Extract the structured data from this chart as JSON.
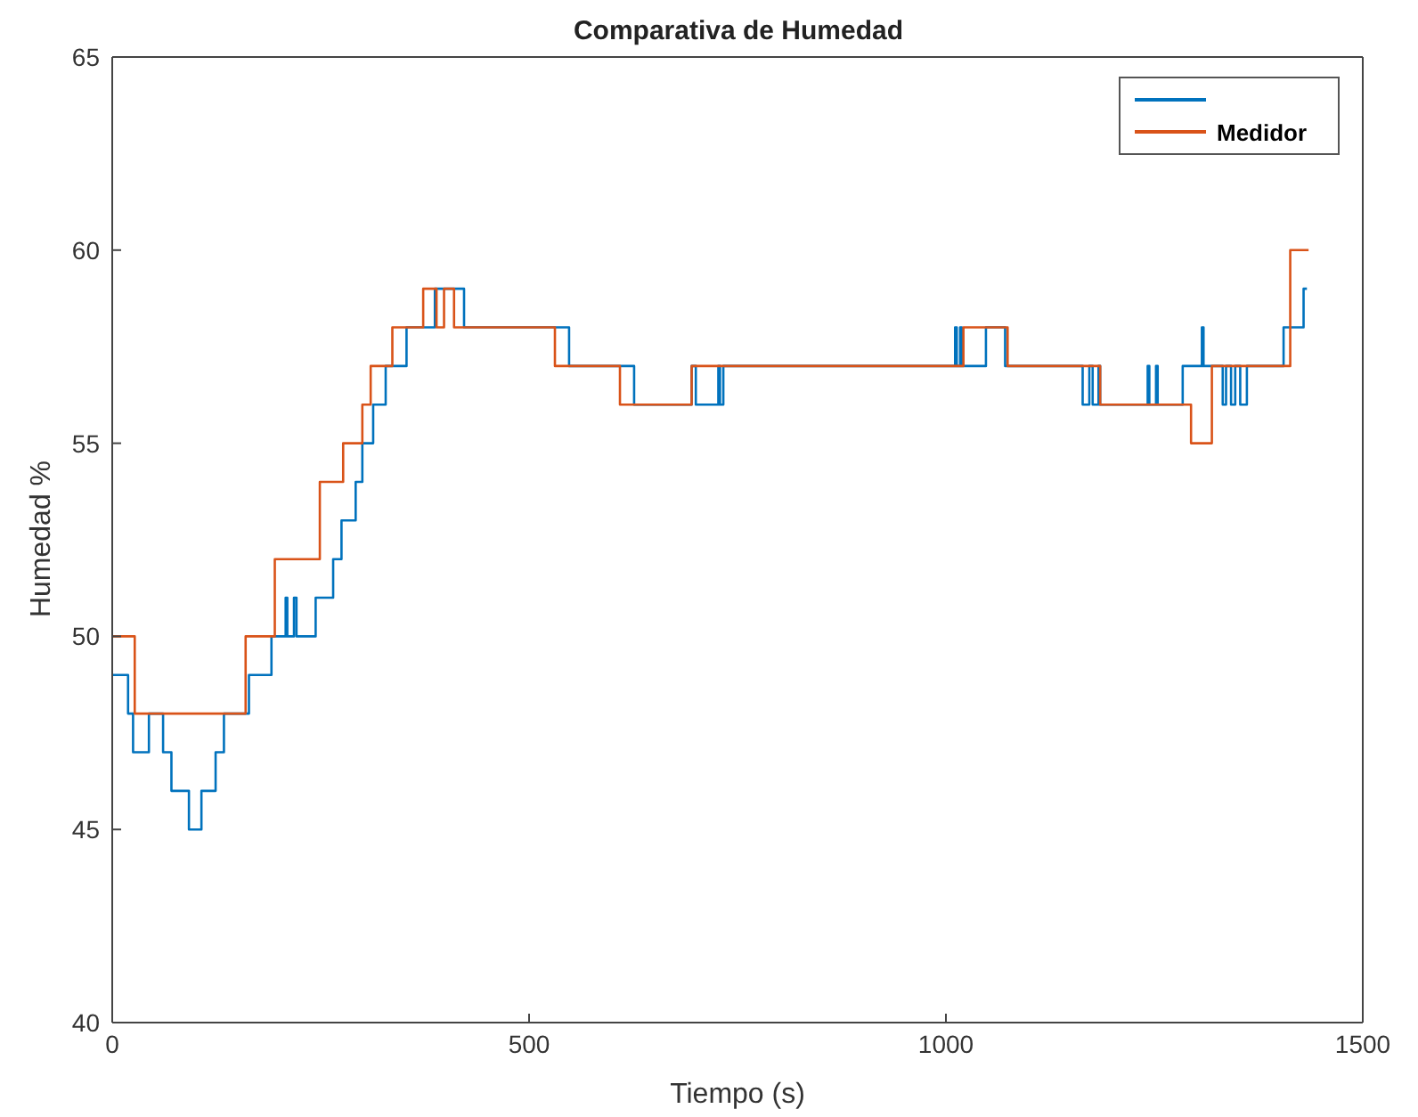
{
  "chart_data": {
    "type": "step",
    "title": "Comparativa de Humedad",
    "xlabel": "Tiempo (s)",
    "ylabel": "Humedad %",
    "xlim": [
      0,
      1500
    ],
    "xticks": [
      0,
      500,
      1000,
      1500
    ],
    "ylim": [
      40,
      65
    ],
    "yticks": [
      40,
      45,
      50,
      55,
      60,
      65
    ],
    "grid": false,
    "legend": "top right",
    "marker": "none",
    "line_style": "solid",
    "series": [
      {
        "color": "#0072bd",
        "x": [
          0,
          19,
          25,
          44,
          61,
          71,
          92,
          107,
          124,
          134,
          164,
          191,
          208,
          210,
          218,
          221,
          244,
          265,
          275,
          292,
          300,
          313,
          328,
          353,
          387,
          422,
          548,
          626,
          695,
          700,
          727,
          729,
          733,
          1011,
          1013,
          1017,
          1019,
          1048,
          1071,
          1164,
          1172,
          1176,
          1183,
          1185,
          1242,
          1244,
          1252,
          1254,
          1284,
          1307,
          1309,
          1332,
          1336,
          1342,
          1347,
          1353,
          1361,
          1405,
          1429,
          1433
        ],
        "values": [
          49,
          48,
          47,
          48,
          47,
          46,
          45,
          46,
          47,
          48,
          49,
          50,
          51,
          50,
          51,
          50,
          51,
          52,
          53,
          54,
          55,
          56,
          57,
          58,
          59,
          58,
          57,
          56,
          57,
          56,
          57,
          56,
          57,
          58,
          57,
          58,
          57,
          58,
          57,
          56,
          57,
          56,
          57,
          56,
          57,
          56,
          57,
          56,
          57,
          58,
          57,
          56,
          57,
          56,
          57,
          56,
          57,
          58,
          59,
          59
        ]
      },
      {
        "name": "Medidor",
        "color": "#d95319",
        "x": [
          0,
          27,
          160,
          195,
          249,
          277,
          300,
          310,
          336,
          373,
          389,
          398,
          410,
          531,
          609,
          695,
          1021,
          1074,
          1185,
          1294,
          1319,
          1413,
          1435
        ],
        "values": [
          50,
          48,
          50,
          52,
          54,
          55,
          56,
          57,
          58,
          59,
          58,
          59,
          58,
          57,
          56,
          57,
          58,
          57,
          56,
          55,
          57,
          60,
          60
        ]
      }
    ]
  }
}
